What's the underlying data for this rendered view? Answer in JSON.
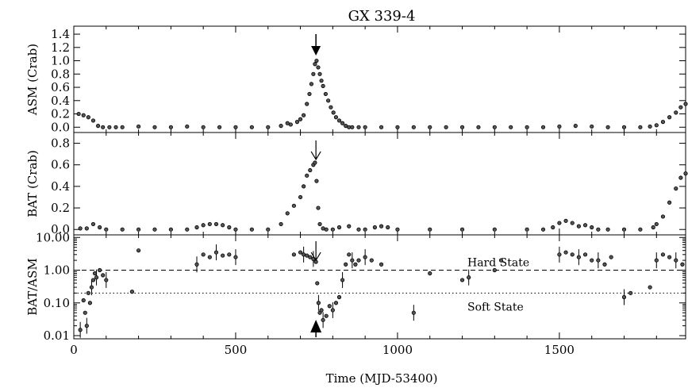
{
  "chart_data": {
    "title": "GX 339-4",
    "xlabel": "Time (MJD-53400)",
    "xlim": [
      0,
      1890
    ],
    "xticks": [
      "0",
      "500",
      "1000",
      "1500"
    ],
    "panels": [
      {
        "type": "scatter",
        "ylabel": "ASM (Crab)",
        "yscale": "linear",
        "ylim": [
          -0.08,
          1.52
        ],
        "yticks": [
          "0.0",
          "0.2",
          "0.4",
          "0.6",
          "0.8",
          "1.0",
          "1.2",
          "1.4"
        ],
        "arrow_at": 748,
        "series": [
          {
            "x": [
              15,
              30,
              45,
              60,
              75,
              90,
              110,
              130,
              150,
              200,
              250,
              300,
              350,
              400,
              450,
              500,
              550,
              600,
              640,
              660,
              670,
              690,
              700,
              710,
              720,
              728,
              734,
              740,
              745,
              750,
              755,
              760,
              765,
              770,
              778,
              786,
              794,
              802,
              810,
              820,
              830,
              840,
              850,
              860,
              880,
              900,
              950,
              1000,
              1050,
              1100,
              1150,
              1200,
              1250,
              1300,
              1350,
              1400,
              1450,
              1500,
              1550,
              1600,
              1650,
              1700,
              1750,
              1780,
              1800,
              1820,
              1840,
              1860,
              1875,
              1890
            ],
            "y": [
              0.2,
              0.18,
              0.15,
              0.1,
              0.02,
              0.0,
              0.0,
              0.0,
              0.0,
              0.01,
              0.0,
              0.0,
              0.01,
              0.0,
              0.0,
              0.0,
              0.0,
              0.0,
              0.02,
              0.06,
              0.04,
              0.08,
              0.12,
              0.18,
              0.35,
              0.5,
              0.65,
              0.8,
              0.95,
              1.0,
              0.9,
              0.8,
              0.7,
              0.62,
              0.5,
              0.4,
              0.3,
              0.22,
              0.15,
              0.1,
              0.06,
              0.02,
              0.0,
              0.0,
              0.0,
              0.0,
              0.0,
              0.0,
              0.0,
              0.0,
              0.0,
              0.0,
              0.0,
              0.0,
              0.0,
              0.0,
              0.0,
              0.01,
              0.02,
              0.01,
              0.0,
              0.0,
              0.0,
              0.01,
              0.03,
              0.08,
              0.15,
              0.22,
              0.3,
              0.35
            ]
          }
        ]
      },
      {
        "type": "scatter",
        "ylabel": "BAT (Crab)",
        "yscale": "linear",
        "ylim": [
          -0.05,
          0.9
        ],
        "yticks": [
          "0.0",
          "0.2",
          "0.4",
          "0.6",
          "0.8"
        ],
        "arrow_at": 748,
        "series": [
          {
            "x": [
              20,
              40,
              60,
              80,
              100,
              150,
              200,
              250,
              300,
              350,
              380,
              400,
              420,
              440,
              460,
              480,
              500,
              550,
              600,
              640,
              660,
              680,
              700,
              710,
              720,
              730,
              740,
              745,
              750,
              755,
              760,
              770,
              780,
              800,
              820,
              850,
              880,
              900,
              930,
              950,
              970,
              1000,
              1100,
              1200,
              1300,
              1400,
              1450,
              1480,
              1500,
              1520,
              1540,
              1560,
              1580,
              1600,
              1620,
              1650,
              1700,
              1750,
              1790,
              1800,
              1820,
              1840,
              1860,
              1875,
              1890
            ],
            "y": [
              0.01,
              0.01,
              0.05,
              0.02,
              0.0,
              0.0,
              0.0,
              0.0,
              0.0,
              0.0,
              0.02,
              0.04,
              0.05,
              0.05,
              0.04,
              0.02,
              0.0,
              0.0,
              0.0,
              0.05,
              0.15,
              0.22,
              0.3,
              0.4,
              0.5,
              0.55,
              0.6,
              0.62,
              0.45,
              0.2,
              0.05,
              0.01,
              0.0,
              0.0,
              0.02,
              0.03,
              0.0,
              0.0,
              0.02,
              0.03,
              0.02,
              0.0,
              0.0,
              0.0,
              0.0,
              0.0,
              0.0,
              0.02,
              0.06,
              0.08,
              0.06,
              0.03,
              0.04,
              0.02,
              0.0,
              0.0,
              0.0,
              0.0,
              0.02,
              0.05,
              0.12,
              0.25,
              0.38,
              0.48,
              0.52
            ]
          }
        ]
      },
      {
        "type": "scatter",
        "ylabel": "BAT/ASM",
        "yscale": "log",
        "ylim": [
          0.008,
          12
        ],
        "yticks": [
          "0.01",
          "0.10",
          "1.00",
          "10.00"
        ],
        "hlines": [
          {
            "y": 1.0,
            "style": "dashed",
            "label": "Hard State"
          },
          {
            "y": 0.2,
            "style": "dotted",
            "label": "Soft State"
          }
        ],
        "down_arrow_at": 748,
        "up_arrow_at": 748,
        "series": [
          {
            "x": [
              20,
              30,
              35,
              40,
              45,
              50,
              55,
              60,
              65,
              70,
              80,
              90,
              100,
              180,
              200,
              380,
              400,
              420,
              440,
              460,
              480,
              500,
              680,
              700,
              710,
              720,
              730,
              740,
              748,
              752,
              756,
              760,
              765,
              770,
              780,
              790,
              800,
              810,
              820,
              830,
              840,
              850,
              860,
              870,
              880,
              900,
              920,
              950,
              1050,
              1100,
              1200,
              1220,
              1300,
              1320,
              1500,
              1520,
              1540,
              1560,
              1580,
              1600,
              1620,
              1640,
              1660,
              1700,
              1720,
              1780,
              1800,
              1820,
              1840,
              1860,
              1880
            ],
            "y": [
              0.015,
              0.12,
              0.05,
              0.02,
              0.2,
              0.1,
              0.3,
              0.5,
              0.8,
              0.6,
              1.0,
              0.7,
              0.5,
              0.22,
              4.0,
              1.5,
              3.0,
              2.5,
              3.5,
              2.8,
              3.0,
              2.5,
              3.0,
              3.5,
              3.0,
              2.8,
              2.5,
              2.2,
              1.8,
              0.4,
              0.1,
              0.05,
              0.06,
              0.03,
              0.04,
              0.08,
              0.06,
              0.1,
              0.15,
              0.5,
              1.5,
              3.0,
              2.0,
              1.5,
              2.0,
              2.5,
              2.0,
              1.5,
              0.05,
              0.8,
              0.5,
              0.6,
              1.0,
              2.0,
              3.0,
              3.5,
              3.0,
              2.5,
              3.0,
              2.0,
              2.0,
              1.5,
              2.5,
              0.15,
              0.2,
              0.3,
              2.0,
              3.0,
              2.5,
              2.0,
              1.5
            ]
          }
        ]
      }
    ]
  }
}
